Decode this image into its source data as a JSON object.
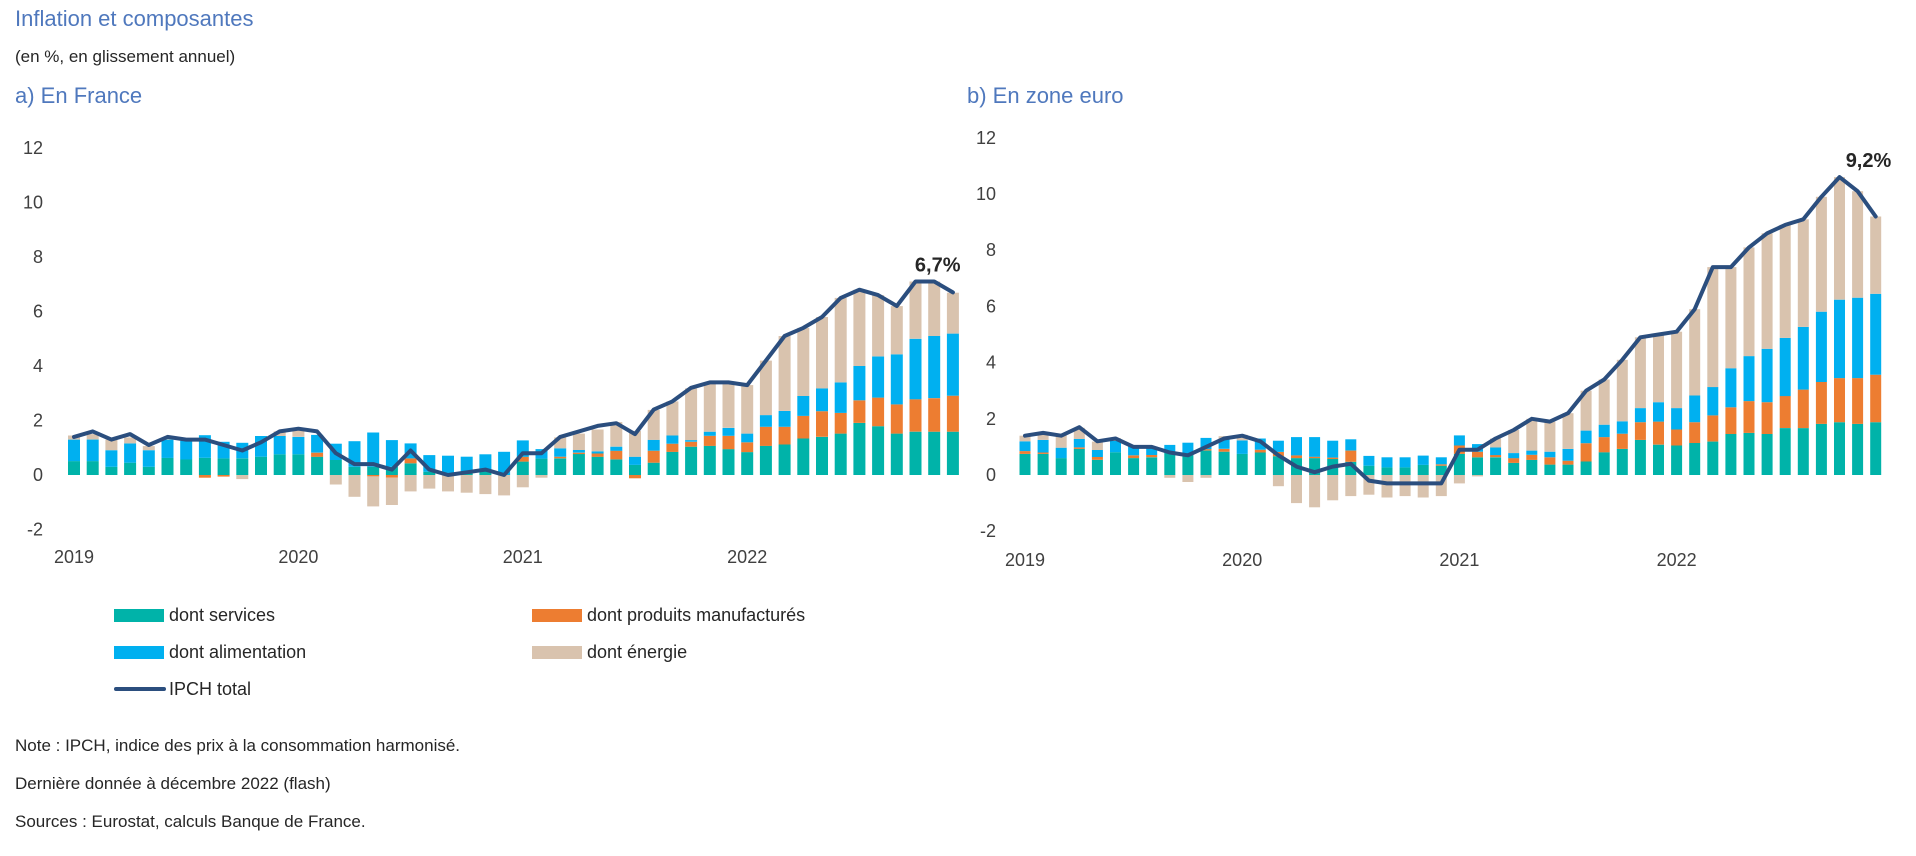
{
  "header": {
    "title": "Inflation et composantes",
    "subtitle": "(en %, en glissement annuel)"
  },
  "colors": {
    "services": "#00b3a9",
    "manufactures": "#ed7d31",
    "alimentation": "#00b0f0",
    "energie": "#d9c3ae",
    "ipch": "#2b4e7e",
    "title": "#4f78bd"
  },
  "legend": [
    {
      "key": "services",
      "label": "dont services"
    },
    {
      "key": "manufactures",
      "label": "dont produits manufacturés"
    },
    {
      "key": "alimentation",
      "label": "dont alimentation"
    },
    {
      "key": "energie",
      "label": "dont énergie"
    },
    {
      "key": "ipch",
      "label": "IPCH total"
    }
  ],
  "notes": [
    "Note : IPCH, indice des prix à la consommation harmonisé.",
    "Dernière donnée à décembre 2022 (flash)",
    "Sources : Eurostat, calculs Banque de France."
  ],
  "chart_data": [
    {
      "type": "bar",
      "stacked": true,
      "title": "a) En France",
      "xlabel": "",
      "ylabel": "",
      "ylim": [
        -2,
        12
      ],
      "yticks": [
        "12",
        "10",
        "8",
        "6",
        "4",
        "2",
        "0",
        "-2"
      ],
      "ytick_values": [
        12,
        10,
        8,
        6,
        4,
        2,
        0,
        -2
      ],
      "grid": false,
      "x_start": "2019-01",
      "x_end": "2022-12",
      "frequency": "monthly",
      "year_labels": [
        "2019",
        "2020",
        "2021",
        "2022"
      ],
      "annotation": {
        "text": "6,7%",
        "at": "2022-12",
        "value": 6.7
      },
      "series": [
        {
          "name": "dont services",
          "key": "services",
          "type": "bar",
          "values": [
            0.51,
            0.51,
            0.3,
            0.45,
            0.3,
            0.63,
            0.57,
            0.63,
            0.61,
            0.61,
            0.67,
            0.76,
            0.76,
            0.67,
            0.55,
            0.3,
            0.3,
            0.3,
            0.43,
            0.12,
            0.08,
            0.12,
            0.18,
            0.0,
            0.49,
            0.6,
            0.61,
            0.77,
            0.67,
            0.57,
            0.37,
            0.45,
            0.85,
            1.04,
            1.07,
            0.95,
            0.84,
            1.07,
            1.12,
            1.34,
            1.4,
            1.52,
            1.91,
            1.79,
            1.52,
            1.59,
            1.59,
            1.59
          ]
        },
        {
          "name": "dont produits manufacturés",
          "key": "manufactures",
          "type": "bar",
          "values": [
            0.0,
            0.0,
            0.0,
            0.0,
            0.0,
            0.0,
            0.0,
            -0.1,
            -0.06,
            0.0,
            0.0,
            0.0,
            0.0,
            0.15,
            0.0,
            0.0,
            -0.05,
            -0.1,
            0.18,
            0.0,
            0.0,
            0.0,
            0.0,
            0.0,
            0.18,
            0.0,
            0.06,
            0.05,
            0.12,
            0.32,
            -0.12,
            0.44,
            0.3,
            0.18,
            0.37,
            0.49,
            0.36,
            0.7,
            0.65,
            0.83,
            0.94,
            0.76,
            0.83,
            1.05,
            1.07,
            1.19,
            1.23,
            1.32
          ]
        },
        {
          "name": "dont alimentation",
          "key": "alimentation",
          "type": "bar",
          "values": [
            0.79,
            0.79,
            0.61,
            0.71,
            0.61,
            0.67,
            0.69,
            0.83,
            0.61,
            0.57,
            0.76,
            0.67,
            0.64,
            0.65,
            0.6,
            0.94,
            1.26,
            0.98,
            0.55,
            0.61,
            0.63,
            0.55,
            0.58,
            0.85,
            0.6,
            0.35,
            0.31,
            0.1,
            0.08,
            0.15,
            0.3,
            0.4,
            0.3,
            0.06,
            0.15,
            0.29,
            0.32,
            0.43,
            0.58,
            0.73,
            0.84,
            1.12,
            1.26,
            1.51,
            1.84,
            2.22,
            2.28,
            2.28
          ]
        },
        {
          "name": "dont énergie",
          "key": "energie",
          "type": "bar",
          "values": [
            0.15,
            0.2,
            0.39,
            0.22,
            0.15,
            0.05,
            0.0,
            0.0,
            0.0,
            -0.15,
            0.0,
            0.17,
            0.25,
            0.0,
            -0.35,
            -0.8,
            -1.1,
            -1.0,
            -0.6,
            -0.5,
            -0.6,
            -0.65,
            -0.7,
            -0.75,
            -0.45,
            -0.1,
            0.4,
            0.6,
            0.8,
            0.9,
            0.95,
            1.1,
            1.25,
            1.9,
            1.8,
            1.7,
            1.78,
            2.0,
            2.75,
            2.5,
            2.62,
            3.1,
            2.8,
            2.25,
            1.77,
            2.1,
            2.0,
            1.5
          ]
        },
        {
          "name": "IPCH total",
          "key": "ipch",
          "type": "line",
          "values": [
            1.4,
            1.6,
            1.3,
            1.5,
            1.1,
            1.4,
            1.3,
            1.3,
            1.1,
            0.9,
            1.2,
            1.6,
            1.7,
            1.6,
            0.8,
            0.4,
            0.4,
            0.2,
            0.9,
            0.2,
            0.0,
            0.1,
            0.2,
            0.0,
            0.8,
            0.8,
            1.4,
            1.6,
            1.8,
            1.9,
            1.5,
            2.4,
            2.7,
            3.2,
            3.4,
            3.4,
            3.3,
            4.2,
            5.1,
            5.4,
            5.8,
            6.5,
            6.8,
            6.6,
            6.2,
            7.1,
            7.1,
            6.7
          ]
        }
      ]
    },
    {
      "type": "bar",
      "stacked": true,
      "title": "b) En zone euro",
      "xlabel": "",
      "ylabel": "",
      "ylim": [
        -2,
        12
      ],
      "yticks": [
        "12",
        "10",
        "8",
        "6",
        "4",
        "2",
        "0",
        "-2"
      ],
      "ytick_values": [
        12,
        10,
        8,
        6,
        4,
        2,
        0,
        -2
      ],
      "grid": false,
      "x_start": "2019-01",
      "x_end": "2022-12",
      "frequency": "monthly",
      "year_labels": [
        "2019",
        "2020",
        "2021",
        "2022"
      ],
      "annotation": {
        "text": "9,2%",
        "at": "2022-12",
        "value": 9.2
      },
      "series": [
        {
          "name": "dont services",
          "key": "services",
          "type": "bar",
          "values": [
            0.75,
            0.75,
            0.6,
            0.93,
            0.54,
            0.81,
            0.6,
            0.63,
            0.79,
            0.75,
            0.87,
            0.83,
            0.75,
            0.8,
            0.67,
            0.6,
            0.6,
            0.57,
            0.47,
            0.33,
            0.27,
            0.27,
            0.36,
            0.33,
            0.75,
            0.63,
            0.63,
            0.43,
            0.54,
            0.37,
            0.37,
            0.48,
            0.81,
            0.93,
            1.25,
            1.08,
            1.05,
            1.14,
            1.19,
            1.46,
            1.5,
            1.46,
            1.67,
            1.67,
            1.82,
            1.88,
            1.82,
            1.88
          ]
        },
        {
          "name": "dont produits manufacturés",
          "key": "manufactures",
          "type": "bar",
          "values": [
            0.1,
            0.05,
            0.0,
            0.05,
            0.1,
            0.0,
            0.1,
            0.08,
            0.0,
            0.0,
            0.05,
            0.1,
            0.0,
            0.1,
            0.15,
            0.1,
            0.05,
            0.05,
            0.4,
            0.0,
            0.0,
            0.0,
            0.0,
            0.05,
            0.3,
            0.2,
            0.08,
            0.17,
            0.18,
            0.26,
            0.14,
            0.65,
            0.54,
            0.54,
            0.63,
            0.82,
            0.57,
            0.74,
            0.93,
            0.95,
            1.13,
            1.13,
            1.14,
            1.37,
            1.49,
            1.57,
            1.63,
            1.69
          ]
        },
        {
          "name": "dont alimentation",
          "key": "alimentation",
          "type": "bar",
          "values": [
            0.35,
            0.45,
            0.37,
            0.3,
            0.25,
            0.4,
            0.35,
            0.3,
            0.28,
            0.4,
            0.4,
            0.35,
            0.48,
            0.4,
            0.4,
            0.65,
            0.7,
            0.6,
            0.4,
            0.35,
            0.36,
            0.36,
            0.33,
            0.25,
            0.36,
            0.27,
            0.27,
            0.18,
            0.15,
            0.2,
            0.42,
            0.45,
            0.44,
            0.44,
            0.5,
            0.69,
            0.76,
            0.95,
            1.01,
            1.39,
            1.6,
            1.9,
            2.07,
            2.23,
            2.5,
            2.79,
            2.86,
            2.88
          ]
        },
        {
          "name": "dont énergie",
          "key": "energie",
          "type": "bar",
          "values": [
            0.2,
            0.25,
            0.45,
            0.4,
            0.3,
            0.1,
            0.0,
            0.0,
            -0.1,
            -0.25,
            -0.1,
            0.1,
            0.2,
            0.0,
            -0.4,
            -1.0,
            -1.15,
            -0.9,
            -0.75,
            -0.7,
            -0.8,
            -0.75,
            -0.8,
            -0.75,
            -0.3,
            -0.05,
            0.32,
            0.82,
            1.13,
            1.07,
            1.27,
            1.42,
            1.61,
            2.19,
            2.52,
            2.41,
            2.72,
            3.07,
            4.27,
            3.6,
            3.87,
            4.11,
            4.02,
            3.83,
            4.09,
            4.36,
            3.79,
            2.75
          ]
        },
        {
          "name": "IPCH total",
          "key": "ipch",
          "type": "line",
          "values": [
            1.4,
            1.5,
            1.4,
            1.7,
            1.2,
            1.3,
            1.0,
            1.0,
            0.8,
            0.7,
            1.0,
            1.3,
            1.4,
            1.2,
            0.7,
            0.3,
            0.1,
            0.3,
            0.4,
            -0.2,
            -0.3,
            -0.3,
            -0.3,
            -0.3,
            0.9,
            0.9,
            1.3,
            1.6,
            2.0,
            1.9,
            2.2,
            3.0,
            3.4,
            4.1,
            4.9,
            5.0,
            5.1,
            5.9,
            7.4,
            7.4,
            8.1,
            8.6,
            8.9,
            9.1,
            9.9,
            10.6,
            10.1,
            9.2
          ]
        }
      ]
    }
  ]
}
